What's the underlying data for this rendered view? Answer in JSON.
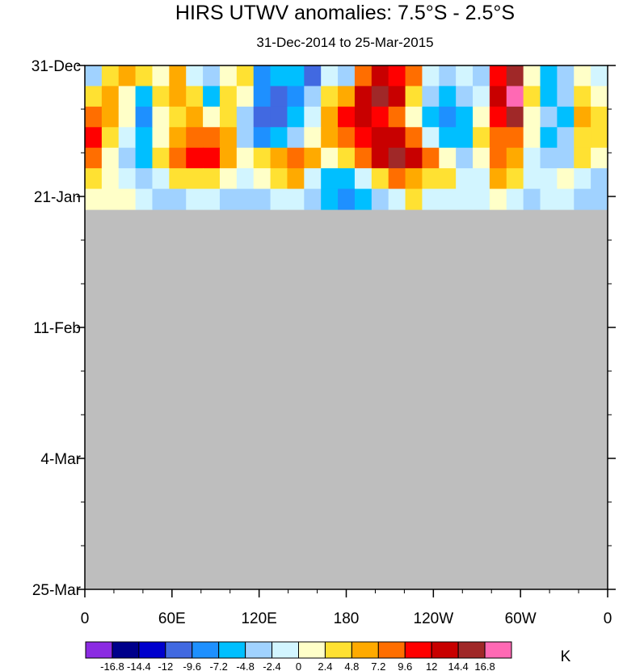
{
  "chart_data": {
    "type": "heatmap",
    "title": "HIRS UTWV anomalies: 7.5°S - 2.5°S",
    "subtitle": "31-Dec-2014 to 25-Mar-2015",
    "x_ticks": [
      "0",
      "60E",
      "120E",
      "180",
      "120W",
      "60W",
      "0"
    ],
    "y_ticks": [
      "31-Dec",
      "21-Jan",
      "11-Feb",
      "4-Mar",
      "25-Mar"
    ],
    "colorbar_unit": "K",
    "colorbar_labels": [
      "-16.8",
      "-14.4",
      "-12",
      "-9.6",
      "-7.2",
      "-4.8",
      "-2.4",
      "0",
      "2.4",
      "4.8",
      "7.2",
      "9.6",
      "12",
      "14.4",
      "16.8"
    ],
    "colorbar_colors": [
      "#8b2be2",
      "#00008b",
      "#0000cd",
      "#4169e1",
      "#1e90ff",
      "#00bfff",
      "#a0d2ff",
      "#d2f5ff",
      "#ffffc8",
      "#ffe132",
      "#ffaa00",
      "#ff6e00",
      "#ff0000",
      "#c80000",
      "#a02828",
      "#ff69b4"
    ],
    "missing_color": "#bebebe",
    "data_extent_end": "~24-Jan",
    "anomaly_rows": [
      [
        6,
        9,
        10,
        9,
        8,
        10,
        7,
        6,
        8,
        9,
        4,
        5,
        5,
        3,
        7,
        6,
        11,
        13,
        12,
        11,
        7,
        6,
        7,
        6,
        12,
        14,
        8,
        5,
        6,
        8,
        7
      ],
      [
        9,
        10,
        8,
        5,
        9,
        10,
        9,
        5,
        9,
        8,
        4,
        3,
        4,
        6,
        9,
        10,
        13,
        14,
        13,
        9,
        6,
        5,
        6,
        7,
        13,
        15,
        9,
        5,
        6,
        9,
        8
      ],
      [
        11,
        10,
        8,
        4,
        8,
        9,
        10,
        8,
        9,
        6,
        3,
        3,
        5,
        7,
        10,
        12,
        13,
        12,
        11,
        8,
        5,
        4,
        5,
        8,
        12,
        14,
        8,
        6,
        5,
        10,
        9
      ],
      [
        12,
        9,
        7,
        5,
        8,
        10,
        11,
        11,
        10,
        6,
        4,
        5,
        6,
        8,
        10,
        11,
        12,
        13,
        13,
        11,
        7,
        5,
        5,
        9,
        11,
        11,
        8,
        5,
        6,
        9,
        9
      ],
      [
        11,
        8,
        6,
        5,
        9,
        11,
        12,
        12,
        10,
        8,
        9,
        10,
        11,
        10,
        8,
        9,
        11,
        13,
        14,
        13,
        11,
        8,
        6,
        8,
        11,
        10,
        7,
        6,
        6,
        9,
        8
      ],
      [
        9,
        8,
        7,
        6,
        7,
        9,
        9,
        9,
        8,
        7,
        8,
        9,
        10,
        7,
        5,
        5,
        7,
        9,
        11,
        10,
        9,
        9,
        7,
        7,
        10,
        9,
        7,
        7,
        8,
        7,
        6
      ],
      [
        8,
        8,
        8,
        7,
        6,
        6,
        7,
        7,
        6,
        6,
        6,
        7,
        7,
        6,
        5,
        4,
        5,
        6,
        7,
        9,
        7,
        7,
        7,
        7,
        8,
        7,
        6,
        7,
        7,
        6,
        6
      ]
    ]
  }
}
